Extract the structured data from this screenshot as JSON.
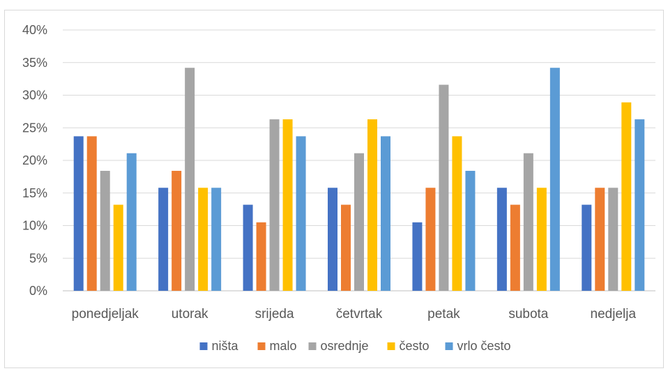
{
  "chart_data": {
    "type": "bar",
    "title": "",
    "xlabel": "",
    "ylabel": "",
    "ylim": [
      0,
      0.4
    ],
    "y_ticks": [
      "0%",
      "5%",
      "10%",
      "15%",
      "20%",
      "25%",
      "30%",
      "35%",
      "40%"
    ],
    "grid": true,
    "legend_position": "bottom",
    "categories": [
      "ponedjeljak",
      "utorak",
      "srijeda",
      "četvrtak",
      "petak",
      "subota",
      "nedjelja"
    ],
    "series": [
      {
        "name": "ništa",
        "color": "#4472C4",
        "values": [
          0.237,
          0.158,
          0.132,
          0.158,
          0.105,
          0.158,
          0.132
        ]
      },
      {
        "name": "malo",
        "color": "#ED7D31",
        "values": [
          0.237,
          0.184,
          0.105,
          0.132,
          0.158,
          0.132,
          0.158
        ]
      },
      {
        "name": "osrednje",
        "color": "#A5A5A5",
        "values": [
          0.184,
          0.342,
          0.263,
          0.211,
          0.316,
          0.211,
          0.158
        ]
      },
      {
        "name": "često",
        "color": "#FFC000",
        "values": [
          0.132,
          0.158,
          0.263,
          0.263,
          0.237,
          0.158,
          0.289
        ]
      },
      {
        "name": "vrlo često",
        "color": "#5B9BD5",
        "values": [
          0.211,
          0.158,
          0.237,
          0.237,
          0.184,
          0.342,
          0.263
        ]
      }
    ]
  }
}
